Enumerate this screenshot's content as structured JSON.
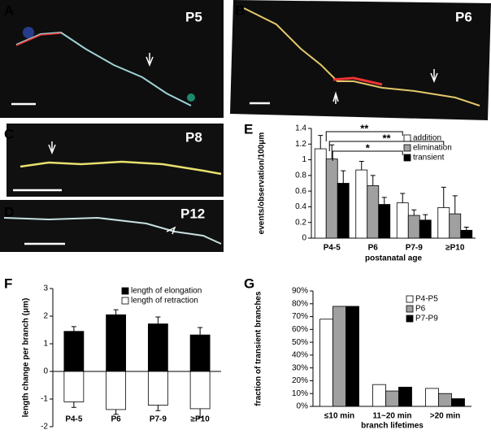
{
  "panel_letters": [
    "A",
    "B",
    "C",
    "D",
    "E",
    "F",
    "G"
  ],
  "image_labels": [
    "P5",
    "P6",
    "P8",
    "P12"
  ],
  "chart_data": [
    {
      "type": "bar",
      "x_label": "postanatal age",
      "y_label": "events/observation/100μm",
      "categories": [
        "P4-5",
        "P6",
        "P7-9",
        "≥P10"
      ],
      "series": [
        {
          "name": "addition",
          "color": "#ffffff",
          "values": [
            1.14,
            0.87,
            0.45,
            0.39
          ],
          "errors": [
            0.17,
            0.11,
            0.12,
            0.26
          ]
        },
        {
          "name": "elimination",
          "color": "#a0a0a0",
          "values": [
            1.01,
            0.67,
            0.29,
            0.31
          ],
          "errors": [
            0.18,
            0.13,
            0.07,
            0.23
          ]
        },
        {
          "name": "transient",
          "color": "#000000",
          "values": [
            0.7,
            0.43,
            0.23,
            0.1
          ],
          "errors": [
            0.16,
            0.09,
            0.07,
            0.04
          ]
        }
      ],
      "ylim": [
        0,
        1.4
      ],
      "yticks": [
        0,
        0.2,
        0.4,
        0.6,
        0.8,
        1,
        1.2,
        1.4
      ],
      "annotations": [
        "**",
        "**",
        "*"
      ],
      "legend": "upper right"
    },
    {
      "type": "bar",
      "stacked": true,
      "y_label": "length change per branch (μm)",
      "categories": [
        "P4-5",
        "P6",
        "P7-9",
        "≥P10"
      ],
      "series": [
        {
          "name": "length of elongation",
          "color": "#000000",
          "values": [
            1.45,
            2.05,
            1.72,
            1.32
          ],
          "errors": [
            0.17,
            0.18,
            0.25,
            0.27
          ]
        },
        {
          "name": "length of retraction",
          "color": "#ffffff",
          "values": [
            -1.1,
            -1.38,
            -1.22,
            -1.35
          ],
          "errors": [
            0.2,
            0.17,
            0.2,
            0.32
          ]
        }
      ],
      "ylim": [
        -2,
        3
      ],
      "yticks": [
        -2,
        -1,
        0,
        1,
        2,
        3
      ],
      "legend": "upper left"
    },
    {
      "type": "bar",
      "x_label": "branch lifetimes",
      "y_label": "fraction of transient branches",
      "categories": [
        "≤10 min",
        "11~20 min",
        ">20 min"
      ],
      "series": [
        {
          "name": "P4-P5",
          "color": "#ffffff",
          "values": [
            68,
            17,
            14
          ]
        },
        {
          "name": "P6",
          "color": "#a0a0a0",
          "values": [
            78,
            12,
            10
          ]
        },
        {
          "name": "P7-P9",
          "color": "#000000",
          "values": [
            78,
            15,
            6
          ]
        }
      ],
      "ylim": [
        0,
        90
      ],
      "yticks": [
        {
          "value": 0,
          "label": "0%"
        },
        {
          "value": 10,
          "label": "10%"
        },
        {
          "value": 20,
          "label": "20%"
        },
        {
          "value": 30,
          "label": "30%"
        },
        {
          "value": 40,
          "label": "40%"
        },
        {
          "value": 50,
          "label": "50%"
        },
        {
          "value": 60,
          "label": "60%"
        },
        {
          "value": 70,
          "label": "70%"
        },
        {
          "value": 80,
          "label": "80%"
        },
        {
          "value": 90,
          "label": "90%"
        }
      ],
      "legend": "upper right"
    }
  ]
}
